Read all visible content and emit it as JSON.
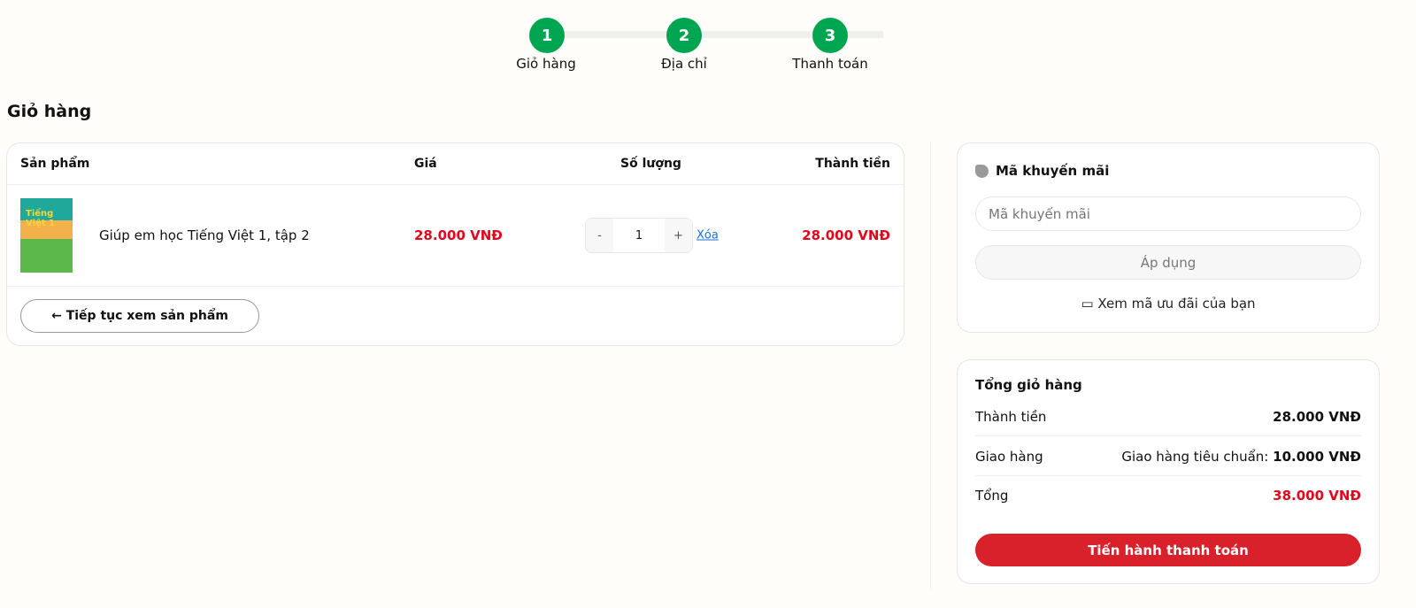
{
  "steps": [
    {
      "number": "1",
      "label": "Giỏ hàng"
    },
    {
      "number": "2",
      "label": "Địa chỉ"
    },
    {
      "number": "3",
      "label": "Thanh toán"
    }
  ],
  "colors": {
    "accent": "#00a552",
    "price": "#e1061b",
    "checkout": "#d9212c"
  },
  "page_title": "Giỏ hàng",
  "cart": {
    "columns": [
      "Sản phẩm",
      "Giá",
      "Số lượng",
      "Thành tiền"
    ],
    "items": [
      {
        "name": "Giúp em học Tiếng Việt 1, tập 2",
        "cover_text": "Tiếng Việt 1",
        "price": "28.000  VNĐ",
        "quantity": "1",
        "minus": "-",
        "plus": "+",
        "remove": "Xóa",
        "subtotal": "28.000  VNĐ"
      }
    ],
    "continue": "← Tiếp tục xem sản phẩm"
  },
  "promo": {
    "title": "Mã khuyến mãi",
    "icon": "tag-icon",
    "placeholder": "Mã khuyến mãi",
    "apply": "Áp dụng",
    "view_label": "Xem mã ưu đãi của bạn",
    "view_icon": "ticket-icon"
  },
  "summary": {
    "title": "Tổng giỏ hàng",
    "subtotal_label": "Thành tiền",
    "subtotal": "28.000  VNĐ",
    "shipping_label": "Giao hàng",
    "shipping_method": "Giao hàng tiêu chuẩn:",
    "shipping": "10.000  VNĐ",
    "total_label": "Tổng",
    "total": "38.000  VNĐ",
    "checkout": "Tiến hành thanh toán"
  }
}
